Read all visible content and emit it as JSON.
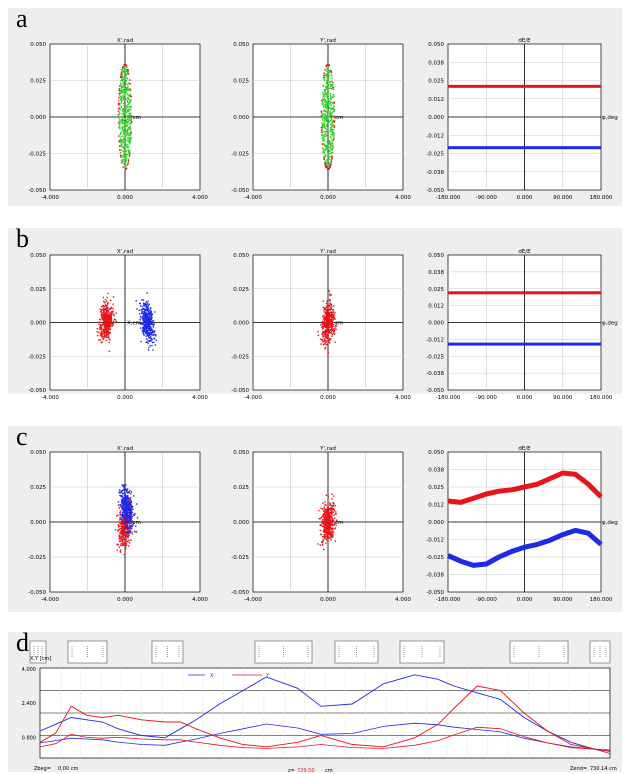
{
  "panel_labels": [
    "a",
    "b",
    "c",
    "d"
  ],
  "colors": {
    "red": "#e8141a",
    "blue": "#1e2ae6",
    "green": "#29d11e",
    "grid": "#c8c8c8",
    "panel_bg": "#eeeeee"
  },
  "axis_text": {
    "xp_title": "X',rad",
    "yp_title": "Y',rad",
    "de_title": "dE/E",
    "x_unit": "X,cm",
    "y_unit": "Y,cm",
    "phi_unit": "φ,deg",
    "pos_ticks": [
      "-4.000",
      "0.000",
      "4.000"
    ],
    "ang_ticks": [
      "0.050",
      "0.025",
      "0.000",
      "-0.025",
      "-0.050"
    ],
    "phi_ticks": [
      "-180.000",
      "-90.000",
      "0.000",
      "90.000",
      "180.000"
    ],
    "de_ticks": [
      "0.050",
      "0.038",
      "0.025",
      "0.012",
      "0.000",
      "-0.012",
      "-0.025",
      "-0.038",
      "-0.050"
    ]
  },
  "lattice": {
    "legend_x": "X",
    "legend_y": "Y",
    "yaxis_title": "X,Y [cm]",
    "y_ticks": [
      "4.000",
      "2.400",
      "0.800"
    ],
    "zbeg_label": "Zbeg=",
    "zbeg_value": "0.00 cm",
    "pos_label": "z=",
    "pos_value": "729.50",
    "pos_unit": "cm",
    "zend_label": "Zend=",
    "zend_value": "730.14 cm"
  },
  "chart_data": [
    {
      "panel": "a",
      "type": "scatter",
      "title": "X',rad",
      "xlabel": "X,cm",
      "ylim": [
        -0.05,
        0.05
      ],
      "xlim": [
        -4,
        4
      ],
      "series": [
        {
          "name": "",
          "color": "green",
          "shape": "narrow ellipse",
          "x_halfwidth": 0.35,
          "y_halfwidth": 0.036
        }
      ]
    },
    {
      "panel": "a",
      "type": "scatter",
      "title": "Y',rad",
      "xlabel": "Y,cm",
      "ylim": [
        -0.05,
        0.05
      ],
      "xlim": [
        -4,
        4
      ],
      "series": [
        {
          "name": "",
          "color": "green",
          "shape": "narrow ellipse",
          "x_halfwidth": 0.35,
          "y_halfwidth": 0.036
        }
      ]
    },
    {
      "panel": "a",
      "type": "line",
      "title": "dE/E",
      "xlabel": "φ,deg",
      "xlim": [
        -180,
        180
      ],
      "ylim": [
        -0.05,
        0.05
      ],
      "series": [
        {
          "color": "red",
          "constant": 0.021
        },
        {
          "color": "blue",
          "constant": -0.021
        }
      ]
    },
    {
      "panel": "b",
      "type": "scatter",
      "title": "X',rad",
      "xlabel": "X,cm",
      "ylim": [
        -0.05,
        0.05
      ],
      "xlim": [
        -4,
        4
      ],
      "series": [
        {
          "color": "red",
          "center_x": -1.0,
          "center_y": 0.001
        },
        {
          "color": "blue",
          "center_x": 1.2,
          "center_y": 0.0
        }
      ]
    },
    {
      "panel": "b",
      "type": "scatter",
      "title": "Y',rad",
      "xlabel": "Y,cm",
      "ylim": [
        -0.05,
        0.05
      ],
      "xlim": [
        -4,
        4
      ],
      "series": [
        {
          "color": "red",
          "center_x": 0.0,
          "center_y": 0.0
        }
      ]
    },
    {
      "panel": "b",
      "type": "line",
      "title": "dE/E",
      "xlabel": "φ,deg",
      "xlim": [
        -180,
        180
      ],
      "ylim": [
        -0.05,
        0.05
      ],
      "series": [
        {
          "color": "red",
          "constant": 0.022
        },
        {
          "color": "blue",
          "constant": -0.016
        }
      ]
    },
    {
      "panel": "c",
      "type": "scatter",
      "title": "X',rad",
      "xlabel": "X,cm",
      "ylim": [
        -0.05,
        0.05
      ],
      "xlim": [
        -4,
        4
      ],
      "series": [
        {
          "color": "red",
          "center_x": 0.0,
          "center_y": -0.003
        },
        {
          "color": "blue",
          "center_x": 0.1,
          "center_y": 0.01
        }
      ]
    },
    {
      "panel": "c",
      "type": "scatter",
      "title": "Y',rad",
      "xlabel": "Y,cm",
      "ylim": [
        -0.05,
        0.05
      ],
      "xlim": [
        -4,
        4
      ],
      "series": [
        {
          "color": "red",
          "center_x": 0.0,
          "center_y": 0.0
        }
      ]
    },
    {
      "panel": "c",
      "type": "line",
      "title": "dE/E",
      "xlabel": "φ,deg",
      "xlim": [
        -180,
        180
      ],
      "ylim": [
        -0.05,
        0.05
      ],
      "series": [
        {
          "color": "red",
          "x": [
            -180,
            -150,
            -120,
            -90,
            -60,
            -30,
            0,
            30,
            60,
            90,
            120,
            150,
            180
          ],
          "y": [
            0.015,
            0.014,
            0.017,
            0.02,
            0.022,
            0.023,
            0.025,
            0.027,
            0.031,
            0.035,
            0.034,
            0.027,
            0.018
          ]
        },
        {
          "color": "blue",
          "x": [
            -180,
            -150,
            -120,
            -90,
            -60,
            -30,
            0,
            30,
            60,
            90,
            120,
            150,
            180
          ],
          "y": [
            -0.024,
            -0.028,
            -0.031,
            -0.03,
            -0.025,
            -0.021,
            -0.018,
            -0.016,
            -0.013,
            -0.009,
            -0.006,
            -0.008,
            -0.016
          ]
        }
      ]
    },
    {
      "panel": "d",
      "type": "line",
      "title": "",
      "ylim": [
        0,
        4
      ],
      "xlim": [
        0,
        730.14
      ],
      "series": [
        {
          "name": "X",
          "color": "blue",
          "x": [
            0,
            20,
            40,
            60,
            80,
            100,
            130,
            160,
            180,
            200,
            230,
            260,
            290,
            330,
            360,
            400,
            440,
            480,
            510,
            530,
            560,
            590,
            620,
            650,
            680,
            710,
            730
          ],
          "y": [
            1.2,
            1.5,
            1.8,
            1.7,
            1.6,
            1.3,
            1.0,
            0.9,
            1.3,
            1.7,
            2.4,
            3.0,
            3.6,
            3.1,
            2.3,
            2.4,
            3.3,
            3.7,
            3.5,
            3.2,
            2.9,
            2.6,
            1.8,
            1.2,
            0.7,
            0.4,
            0.3
          ]
        },
        {
          "name": "Y",
          "color": "red",
          "x": [
            0,
            20,
            40,
            60,
            80,
            100,
            130,
            160,
            180,
            200,
            230,
            260,
            290,
            330,
            360,
            400,
            440,
            480,
            510,
            530,
            560,
            590,
            620,
            650,
            680,
            710,
            730
          ],
          "y": [
            0.7,
            1.1,
            2.3,
            1.9,
            1.8,
            1.9,
            1.7,
            1.6,
            1.6,
            1.3,
            0.9,
            0.6,
            0.5,
            0.7,
            1.0,
            0.6,
            0.5,
            0.9,
            1.5,
            2.2,
            3.2,
            3.0,
            2.0,
            1.2,
            0.6,
            0.4,
            0.2
          ]
        }
      ]
    }
  ]
}
